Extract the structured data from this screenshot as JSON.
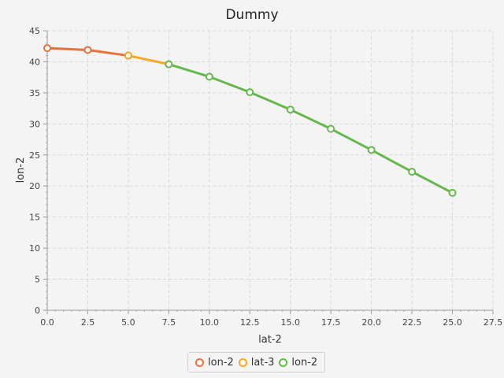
{
  "chart_data": {
    "type": "line",
    "title": "Dummy",
    "xlabel": "lat-2",
    "ylabel": "lon-2",
    "xlim": [
      0,
      27.5
    ],
    "ylim": [
      0,
      45
    ],
    "x_ticks": [
      "0.0",
      "2.5",
      "5.0",
      "7.5",
      "10.0",
      "12.5",
      "15.0",
      "17.5",
      "20.0",
      "22.5",
      "25.0",
      "27.5"
    ],
    "y_ticks": [
      "0",
      "5",
      "10",
      "15",
      "20",
      "25",
      "30",
      "35",
      "40",
      "45"
    ],
    "grid": true,
    "legend_position": "bottom-center",
    "series": [
      {
        "name": "lon-2",
        "color": "#e8703a",
        "points": [
          [
            0.0,
            42.2
          ],
          [
            2.5,
            41.9
          ],
          [
            5.0,
            41.0
          ]
        ]
      },
      {
        "name": "lat-3",
        "color": "#f5a82a",
        "points": [
          [
            5.0,
            41.0
          ],
          [
            7.5,
            39.6
          ]
        ]
      },
      {
        "name": "lon-2",
        "color": "#66b84c",
        "points": [
          [
            7.5,
            39.6
          ],
          [
            10.0,
            37.6
          ],
          [
            12.5,
            35.1
          ],
          [
            15.0,
            32.3
          ],
          [
            17.5,
            29.2
          ],
          [
            20.0,
            25.8
          ],
          [
            22.5,
            22.3
          ],
          [
            25.0,
            18.9
          ]
        ]
      }
    ]
  }
}
